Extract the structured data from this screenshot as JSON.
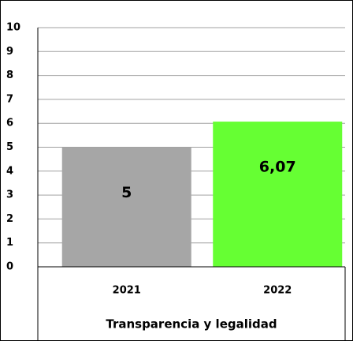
{
  "chart_data": {
    "type": "bar",
    "x_label": "Transparencia y legalidad",
    "categories": [
      "2021",
      "2022"
    ],
    "values": [
      5,
      6.07
    ],
    "value_labels": [
      "5",
      "6,07"
    ],
    "colors": [
      "#a6a6a6",
      "#66ff33"
    ],
    "ylim": [
      0,
      10
    ],
    "yticks": [
      0,
      1,
      2,
      3,
      4,
      5,
      6,
      7,
      8,
      9,
      10
    ],
    "grid": true
  }
}
